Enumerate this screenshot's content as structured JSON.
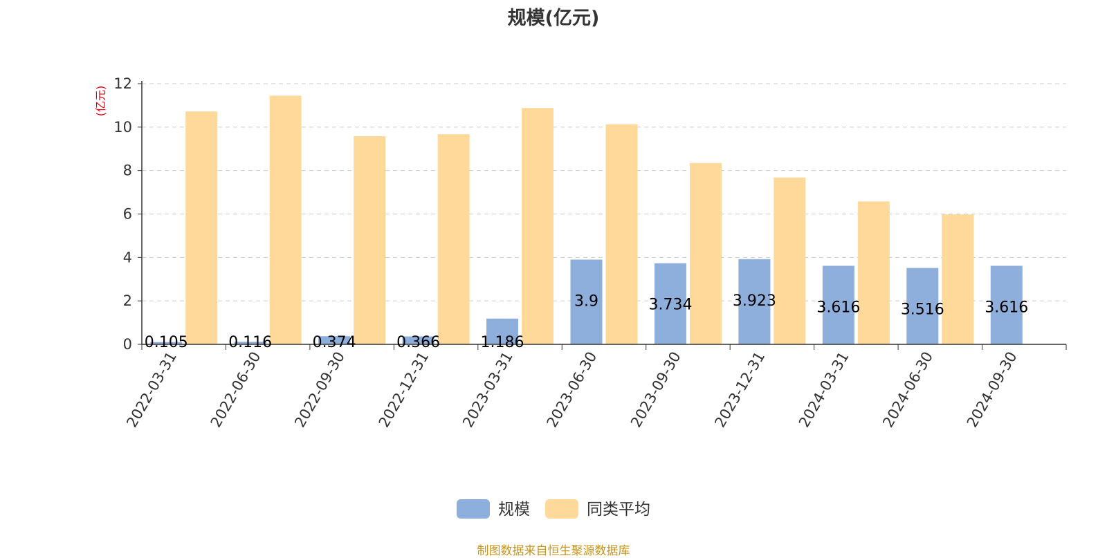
{
  "title": "规模(亿元)",
  "footer": "制图数据来自恒生聚源数据库",
  "colors": {
    "series_scale": "#8eaedb",
    "series_avg": "#ffd99a",
    "axis_unit": "#e60012",
    "footer": "#c8951e",
    "grid": "#cccccc",
    "axis": "#333333",
    "text": "#333333"
  },
  "chart_data": {
    "type": "bar",
    "title": "规模(亿元)",
    "ylabel": "(亿元)",
    "xlabel": "",
    "ylim": [
      0,
      12
    ],
    "yticks": [
      0,
      2,
      4,
      6,
      8,
      10,
      12
    ],
    "grid": true,
    "legend_position": "bottom-center",
    "categories": [
      "2022-03-31",
      "2022-06-30",
      "2022-09-30",
      "2022-12-31",
      "2023-03-31",
      "2023-06-30",
      "2023-09-30",
      "2023-12-31",
      "2024-03-31",
      "2024-06-30",
      "2024-09-30"
    ],
    "series": [
      {
        "name": "规模",
        "values": [
          0.105,
          0.116,
          0.374,
          0.366,
          1.186,
          3.9,
          3.734,
          3.923,
          3.616,
          3.516,
          3.616
        ],
        "labels": [
          "0.105",
          "0.116",
          "0.374",
          "0.366",
          "1.186",
          "3.9",
          "3.734",
          "3.923",
          "3.616",
          "3.516",
          "3.616"
        ]
      },
      {
        "name": "同类平均",
        "values": [
          10.72,
          11.45,
          9.58,
          9.67,
          10.88,
          10.13,
          8.35,
          7.68,
          6.58,
          5.98,
          null
        ]
      }
    ]
  }
}
